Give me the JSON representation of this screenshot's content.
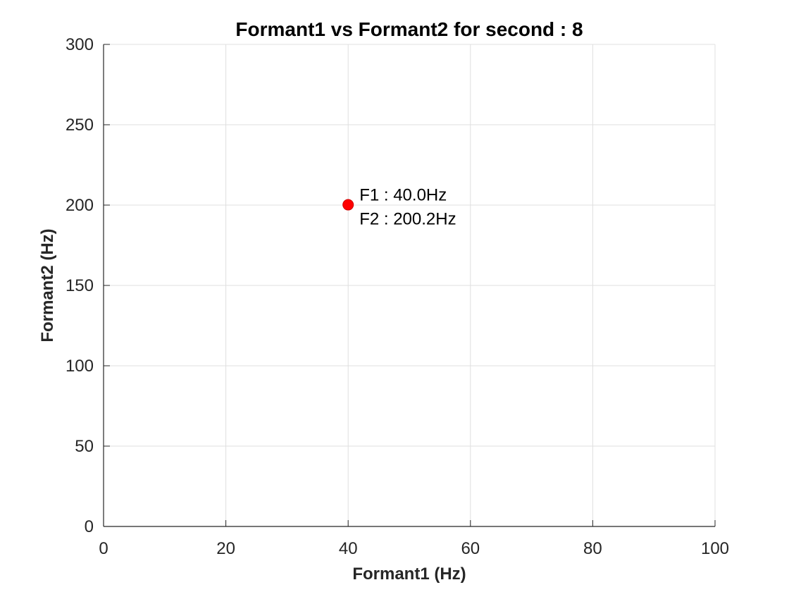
{
  "chart_data": {
    "type": "scatter",
    "title": "Formant1 vs Formant2 for second : 8",
    "xlabel": "Formant1 (Hz)",
    "ylabel": "Formant2 (Hz)",
    "xlim": [
      0,
      100
    ],
    "ylim": [
      0,
      300
    ],
    "xticks": [
      0,
      20,
      40,
      60,
      80,
      100
    ],
    "yticks": [
      0,
      50,
      100,
      150,
      200,
      250,
      300
    ],
    "grid": true,
    "points": [
      {
        "x": 40.0,
        "y": 200.2,
        "color": "#ff0000",
        "labels": [
          "F1 : 40.0Hz",
          "F2 : 200.2Hz"
        ]
      }
    ]
  }
}
